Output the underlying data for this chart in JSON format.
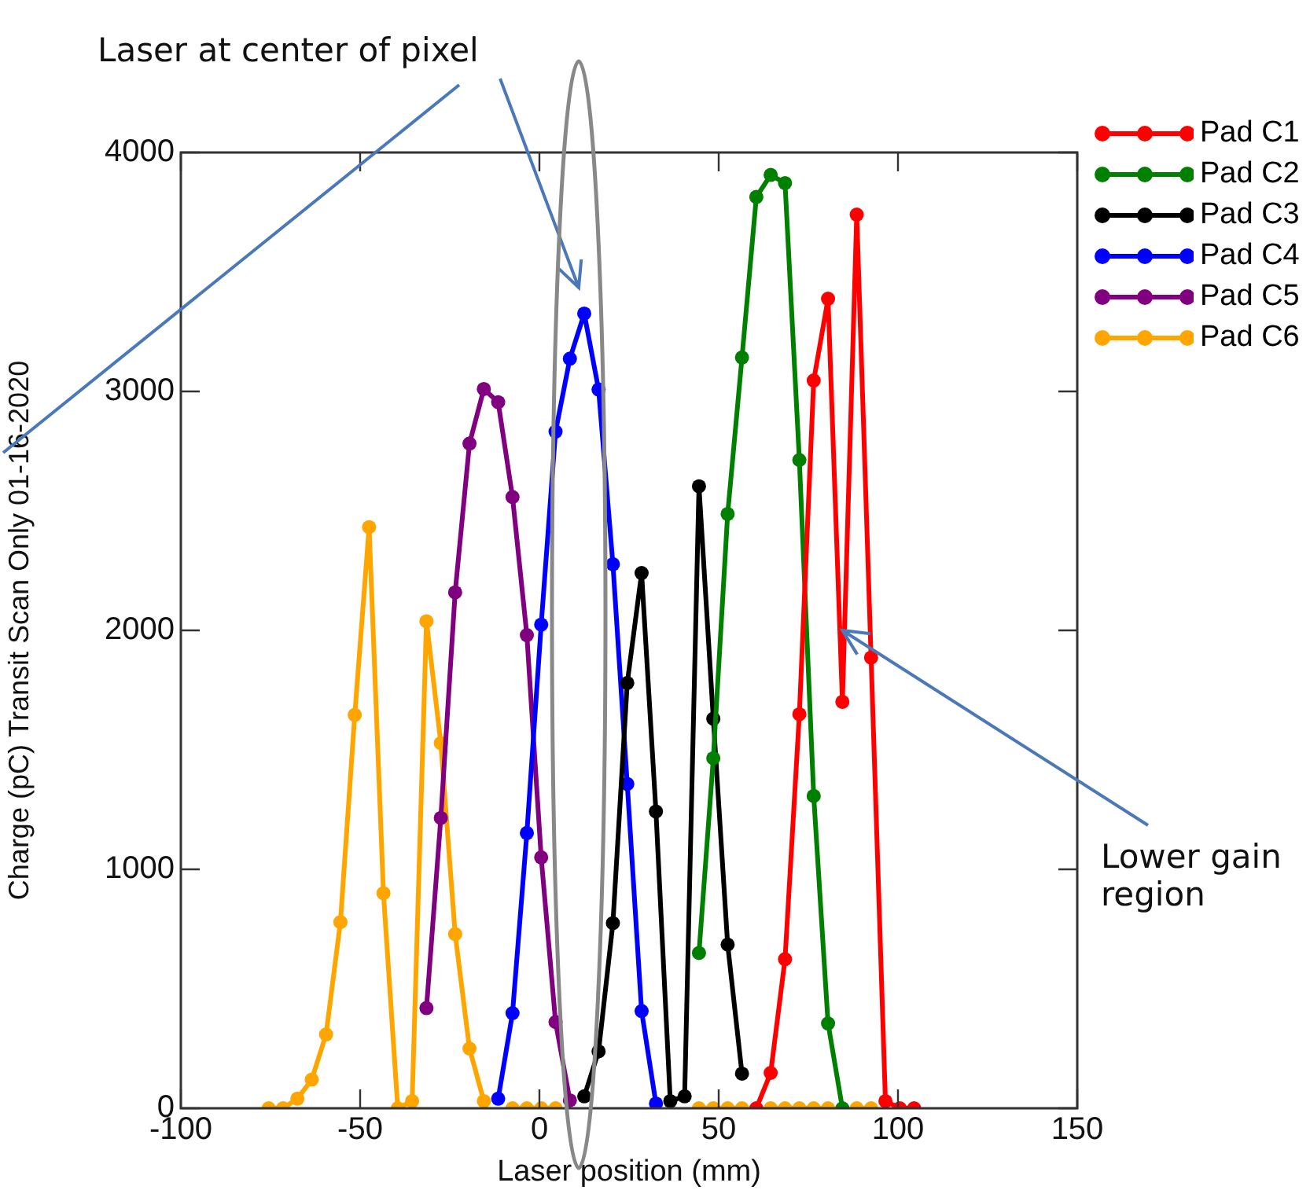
{
  "chart_data": {
    "type": "line",
    "xlabel": "Laser position (mm)",
    "ylabel": "Charge (pC) Transit Scan Only 01-16-2020",
    "x": [
      -75.5,
      -71.5,
      -67.5,
      -63.5,
      -59.5,
      -55.5,
      -51.5,
      -47.5,
      -43.5,
      -39.5,
      -35.5,
      -31.5,
      -27.5,
      -23.5,
      -19.5,
      -15.5,
      -11.5,
      -7.5,
      -3.5,
      0.5,
      4.5,
      8.5,
      12.5,
      16.5,
      20.5,
      24.5,
      28.5,
      32.5,
      36.5,
      40.5,
      44.5,
      48.5,
      52.5,
      56.5,
      60.5,
      64.5,
      68.5,
      72.5,
      76.5,
      80.5,
      84.5,
      88.5,
      92.5,
      96.5,
      100.5,
      104.5
    ],
    "series": [
      {
        "name": "Pad C1",
        "color": "#ff0000",
        "values": [
          null,
          null,
          null,
          null,
          null,
          null,
          null,
          null,
          null,
          null,
          null,
          null,
          null,
          null,
          null,
          null,
          null,
          null,
          null,
          null,
          null,
          null,
          null,
          null,
          null,
          null,
          null,
          null,
          null,
          null,
          null,
          null,
          null,
          null,
          0,
          148,
          624,
          1649,
          3046,
          3388,
          1701,
          3740,
          1886,
          30,
          0,
          0
        ]
      },
      {
        "name": "Pad C2",
        "color": "#008000",
        "values": [
          null,
          null,
          null,
          null,
          null,
          null,
          null,
          null,
          null,
          null,
          null,
          null,
          null,
          null,
          null,
          null,
          null,
          null,
          null,
          null,
          null,
          null,
          null,
          null,
          null,
          null,
          null,
          null,
          null,
          null,
          650,
          1465,
          2487,
          3142,
          3814,
          3906,
          3872,
          2713,
          1307,
          355,
          0,
          null,
          null,
          null,
          null,
          null
        ]
      },
      {
        "name": "Pad C3",
        "color": "#000000",
        "values": [
          null,
          null,
          null,
          null,
          null,
          null,
          null,
          null,
          null,
          null,
          null,
          null,
          null,
          null,
          null,
          null,
          null,
          null,
          null,
          null,
          null,
          null,
          50,
          238,
          775,
          1780,
          2240,
          1242,
          30,
          50,
          2603,
          1630,
          685,
          145,
          null,
          null,
          null,
          null,
          null,
          null,
          null,
          null,
          null,
          null,
          null,
          null
        ]
      },
      {
        "name": "Pad C4",
        "color": "#0000ff",
        "values": [
          null,
          null,
          null,
          null,
          null,
          null,
          null,
          null,
          null,
          null,
          null,
          null,
          null,
          null,
          null,
          null,
          40,
          398,
          1152,
          2024,
          2832,
          3137,
          3326,
          3008,
          2277,
          1357,
          407,
          20,
          null,
          null,
          null,
          null,
          null,
          null,
          null,
          null,
          null,
          null,
          null,
          null,
          null,
          null,
          null,
          null,
          null,
          null
        ]
      },
      {
        "name": "Pad C5",
        "color": "#800080",
        "values": [
          null,
          null,
          null,
          null,
          null,
          null,
          null,
          null,
          null,
          null,
          null,
          419,
          1215,
          2159,
          2782,
          3010,
          2955,
          2558,
          1980,
          1050,
          361,
          33,
          null,
          null,
          null,
          null,
          null,
          null,
          null,
          null,
          null,
          null,
          null,
          null,
          null,
          null,
          null,
          null,
          null,
          null,
          null,
          null,
          null,
          null,
          null,
          null
        ]
      },
      {
        "name": "Pad C6",
        "color": "#ffa500",
        "values": [
          0,
          0,
          40,
          120,
          309,
          779,
          1646,
          2432,
          900,
          0,
          30,
          2038,
          1528,
          729,
          250,
          30,
          null,
          0,
          0,
          0,
          0,
          null,
          null,
          null,
          null,
          null,
          null,
          null,
          null,
          null,
          0,
          0,
          0,
          0,
          null,
          0,
          0,
          0,
          0,
          0,
          null,
          0,
          0,
          null,
          null,
          null
        ]
      }
    ],
    "xlim": [
      -100,
      150
    ],
    "xticks": [
      -100,
      -50,
      0,
      50,
      100,
      150
    ],
    "ylim": [
      0,
      4000
    ],
    "yticks": [
      0,
      1000,
      2000,
      3000,
      4000
    ],
    "grid": false,
    "legend": "top right",
    "marker": "circle",
    "line_style": "solid",
    "annotations": [
      "Laser at center of pixel",
      {
        "text": "Lower gain region",
        "x": 84.5,
        "y": 2000
      }
    ]
  }
}
